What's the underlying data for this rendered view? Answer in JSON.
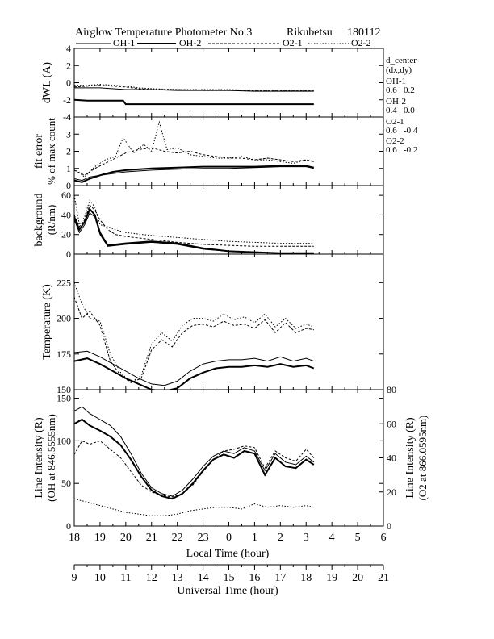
{
  "header": {
    "title": "Airglow Temperature Photometer No.3",
    "site": "Rikubetsu",
    "date": "180112"
  },
  "legend": {
    "placement": "top",
    "items": [
      {
        "name": "OH-1",
        "style": "solid"
      },
      {
        "name": "OH-2",
        "style": "solid-thick"
      },
      {
        "name": "O2-1",
        "style": "dashed"
      },
      {
        "name": "O2-2",
        "style": "dotted"
      }
    ]
  },
  "side_info": {
    "heading1": "d_center",
    "heading2": "(dx,dy)",
    "entries": [
      {
        "name": "OH-1",
        "value": "0.6   0.2"
      },
      {
        "name": "OH-2",
        "value": "0.4   0.0"
      },
      {
        "name": "O2-1",
        "value": "0.6   -0.4"
      },
      {
        "name": "O2-2",
        "value": "0.6   -0.2"
      }
    ]
  },
  "axes": {
    "local_time_label": "Local Time (hour)",
    "local_time_ticks": [
      "18",
      "19",
      "20",
      "21",
      "22",
      "23",
      "0",
      "1",
      "2",
      "3",
      "4",
      "5",
      "6"
    ],
    "universal_time_label": "Universal Time (hour)",
    "universal_time_ticks": [
      "9",
      "10",
      "11",
      "12",
      "13",
      "14",
      "15",
      "16",
      "17",
      "18",
      "19",
      "20",
      "21"
    ]
  },
  "chart_data": [
    {
      "type": "line",
      "title": "",
      "ylabel": "dWL (A)",
      "ylim": [
        -4,
        4
      ],
      "yticks": [
        "4",
        "2",
        "0",
        "-2",
        "-4"
      ],
      "xlim": [
        18,
        30
      ],
      "series": [
        {
          "name": "OH-1",
          "x": [
            18,
            19,
            20,
            21,
            22,
            23,
            24,
            25,
            26,
            27,
            27.3
          ],
          "y": [
            -0.6,
            -0.6,
            -0.8,
            -0.8,
            -0.9,
            -0.9,
            -0.9,
            -1.0,
            -1.0,
            -1.0,
            -1.0
          ]
        },
        {
          "name": "OH-2",
          "x": [
            18,
            18.5,
            19,
            19.5,
            19.9,
            20,
            21,
            22,
            23,
            24,
            25,
            26,
            27,
            27.3
          ],
          "y": [
            -2.0,
            -2.1,
            -2.1,
            -2.1,
            -2.1,
            -2.5,
            -2.5,
            -2.5,
            -2.5,
            -2.5,
            -2.5,
            -2.5,
            -2.5,
            -2.5
          ]
        },
        {
          "name": "O2-1",
          "x": [
            18,
            18.5,
            19,
            19.5,
            20,
            20.5,
            21,
            22,
            23,
            24,
            25,
            26,
            27,
            27.3
          ],
          "y": [
            -0.5,
            -0.4,
            -0.3,
            -0.4,
            -0.5,
            -0.7,
            -0.8,
            -0.8,
            -0.9,
            -0.9,
            -0.9,
            -0.9,
            -0.9,
            -0.9
          ]
        },
        {
          "name": "O2-2",
          "x": [
            18,
            18.5,
            19,
            19.5,
            20,
            20.5,
            21,
            22,
            23,
            24,
            25,
            26,
            27,
            27.3
          ],
          "y": [
            -0.3,
            -0.3,
            -0.2,
            -0.3,
            -0.4,
            -0.6,
            -0.7,
            -0.8,
            -0.8,
            -0.8,
            -0.9,
            -0.9,
            -0.9,
            -0.9
          ]
        }
      ]
    },
    {
      "type": "line",
      "title": "",
      "ylabel": "fit error",
      "ylabel2": "% of max count",
      "ylim": [
        0,
        4
      ],
      "yticks": [
        "4",
        "3",
        "2",
        "1",
        "0"
      ],
      "xlim": [
        18,
        30
      ],
      "series": [
        {
          "name": "OH-1",
          "x": [
            18,
            18.3,
            18.6,
            19,
            19.5,
            20,
            21,
            22,
            23,
            24,
            25,
            26,
            27,
            27.3
          ],
          "y": [
            0.4,
            0.3,
            0.5,
            0.6,
            0.7,
            0.8,
            0.9,
            0.95,
            1.0,
            1.0,
            1.05,
            1.1,
            1.1,
            1.0
          ]
        },
        {
          "name": "OH-2",
          "x": [
            18,
            18.3,
            18.6,
            19,
            19.5,
            20,
            21,
            22,
            23,
            24,
            25,
            26,
            27,
            27.3
          ],
          "y": [
            0.3,
            0.2,
            0.4,
            0.6,
            0.8,
            0.9,
            1.0,
            1.05,
            1.1,
            1.1,
            1.1,
            1.15,
            1.15,
            1.05
          ]
        },
        {
          "name": "O2-1",
          "x": [
            18,
            18.4,
            18.8,
            19.2,
            19.6,
            20,
            20.5,
            21,
            21.5,
            22,
            22.5,
            23,
            23.5,
            24,
            24.5,
            25,
            25.5,
            26,
            26.5,
            27,
            27.3
          ],
          "y": [
            0.9,
            0.6,
            1.0,
            1.3,
            1.6,
            1.9,
            2.1,
            2.2,
            2.0,
            1.9,
            2.0,
            1.8,
            1.7,
            1.6,
            1.6,
            1.5,
            1.6,
            1.5,
            1.4,
            1.5,
            1.4
          ]
        },
        {
          "name": "O2-2",
          "x": [
            18,
            18.4,
            18.8,
            19.2,
            19.6,
            19.9,
            20.3,
            20.7,
            21,
            21.3,
            21.6,
            22,
            22.5,
            23,
            23.5,
            24,
            24.5,
            25,
            25.5,
            26,
            26.5,
            27,
            27.3
          ],
          "y": [
            1.0,
            0.5,
            1.1,
            1.5,
            1.7,
            2.8,
            1.9,
            2.4,
            2.0,
            3.7,
            2.1,
            2.2,
            1.8,
            1.7,
            1.6,
            1.6,
            1.7,
            1.5,
            1.5,
            1.4,
            1.3,
            1.5,
            1.4
          ]
        }
      ]
    },
    {
      "type": "line",
      "title": "",
      "ylabel": "background",
      "ylabel2": "(R/nm)",
      "ylim": [
        0,
        70
      ],
      "yticks": [
        "60",
        "40",
        "20",
        "0"
      ],
      "xlim": [
        18,
        30
      ],
      "series": [
        {
          "name": "OH-1",
          "x": [
            18,
            18.2,
            18.4,
            18.6,
            18.8,
            19,
            19.3,
            20,
            21,
            22,
            23,
            24,
            25,
            26,
            27,
            27.3
          ],
          "y": [
            35,
            22,
            30,
            42,
            38,
            20,
            8,
            10,
            12,
            10,
            5,
            3,
            2,
            1,
            1,
            1
          ]
        },
        {
          "name": "OH-2",
          "x": [
            18,
            18.2,
            18.4,
            18.6,
            18.8,
            19,
            19.3,
            20,
            21,
            22,
            23,
            24,
            25,
            26,
            27,
            27.3
          ],
          "y": [
            38,
            25,
            33,
            46,
            40,
            22,
            9,
            11,
            13,
            11,
            6,
            3,
            2,
            1,
            1,
            1
          ]
        },
        {
          "name": "O2-1",
          "x": [
            18,
            18.2,
            18.4,
            18.6,
            18.8,
            19,
            19.3,
            19.6,
            20,
            21,
            22,
            23,
            24,
            25,
            26,
            27,
            27.3
          ],
          "y": [
            40,
            28,
            35,
            50,
            45,
            35,
            25,
            20,
            18,
            15,
            12,
            10,
            9,
            8,
            8,
            8,
            8
          ]
        },
        {
          "name": "O2-2",
          "x": [
            18,
            18.2,
            18.4,
            18.6,
            18.8,
            19,
            19.3,
            19.6,
            20,
            21,
            22,
            23,
            24,
            25,
            26,
            27,
            27.3
          ],
          "y": [
            60,
            30,
            38,
            55,
            48,
            30,
            28,
            25,
            22,
            19,
            17,
            15,
            13,
            12,
            11,
            11,
            11
          ]
        }
      ]
    },
    {
      "type": "line",
      "title": "",
      "ylabel": "Temperature (K)",
      "ylim": [
        150,
        245
      ],
      "yticks": [
        "225",
        "200",
        "175",
        "150"
      ],
      "xlim": [
        18,
        30
      ],
      "series": [
        {
          "name": "OH-1",
          "x": [
            18,
            18.5,
            19,
            19.5,
            20,
            20.5,
            21,
            21.5,
            22,
            22.5,
            23,
            23.5,
            24,
            24.5,
            25,
            25.5,
            26,
            26.5,
            27,
            27.3
          ],
          "y": [
            176,
            177,
            173,
            168,
            163,
            158,
            154,
            153,
            156,
            163,
            168,
            170,
            171,
            171,
            172,
            170,
            173,
            170,
            172,
            170
          ]
        },
        {
          "name": "OH-2",
          "x": [
            18,
            18.5,
            19,
            19.5,
            20,
            20.5,
            21,
            21.5,
            22,
            22.5,
            23,
            23.5,
            24,
            24.5,
            25,
            25.5,
            26,
            26.5,
            27,
            27.3
          ],
          "y": [
            170,
            172,
            168,
            163,
            158,
            154,
            150,
            149,
            151,
            158,
            162,
            165,
            166,
            166,
            167,
            166,
            168,
            166,
            167,
            165
          ]
        },
        {
          "name": "O2-1",
          "x": [
            18,
            18.3,
            18.6,
            19,
            19.4,
            19.8,
            20.2,
            20.6,
            21,
            21.4,
            21.8,
            22.2,
            22.6,
            23,
            23.4,
            23.8,
            24.2,
            24.6,
            25,
            25.4,
            25.8,
            26.2,
            26.6,
            27,
            27.3
          ],
          "y": [
            215,
            200,
            205,
            195,
            170,
            160,
            155,
            158,
            178,
            185,
            180,
            190,
            195,
            196,
            194,
            198,
            195,
            196,
            193,
            199,
            190,
            197,
            190,
            193,
            192
          ]
        },
        {
          "name": "O2-2",
          "x": [
            18,
            18.3,
            18.6,
            19,
            19.4,
            19.8,
            20.2,
            20.6,
            21,
            21.4,
            21.8,
            22.2,
            22.6,
            23,
            23.4,
            23.8,
            24.2,
            24.6,
            25,
            25.4,
            25.8,
            26.2,
            26.6,
            27,
            27.3
          ],
          "y": [
            225,
            210,
            200,
            198,
            175,
            162,
            155,
            160,
            182,
            190,
            184,
            195,
            200,
            200,
            198,
            203,
            199,
            201,
            197,
            203,
            194,
            200,
            193,
            196,
            194
          ]
        }
      ]
    },
    {
      "type": "line",
      "title": "",
      "ylabel": "Line Intensity (R)",
      "ylabel2": "(OH at 846.5555nm)",
      "ylabel_right": "Line Intensity (R)",
      "ylabel_right2": "(O2 at 866.0595nm)",
      "ylim": [
        0,
        160
      ],
      "ylim_right": [
        0,
        80
      ],
      "yticks": [
        "150",
        "100",
        "50",
        "0"
      ],
      "yticks_right": [
        "80",
        "60",
        "40",
        "20",
        "0"
      ],
      "xlim": [
        18,
        30
      ],
      "series": [
        {
          "name": "OH-1",
          "axis": "left",
          "x": [
            18,
            18.3,
            18.6,
            19,
            19.4,
            19.8,
            20.2,
            20.6,
            21,
            21.4,
            21.8,
            22.2,
            22.6,
            23,
            23.4,
            23.8,
            24.2,
            24.6,
            25,
            25.4,
            25.8,
            26.2,
            26.6,
            27,
            27.3
          ],
          "y": [
            135,
            140,
            132,
            125,
            118,
            105,
            85,
            62,
            45,
            38,
            35,
            42,
            55,
            70,
            82,
            88,
            85,
            92,
            88,
            65,
            85,
            75,
            72,
            82,
            75
          ]
        },
        {
          "name": "OH-2",
          "axis": "left",
          "x": [
            18,
            18.3,
            18.6,
            19,
            19.4,
            19.8,
            20.2,
            20.6,
            21,
            21.4,
            21.8,
            22.2,
            22.6,
            23,
            23.4,
            23.8,
            24.2,
            24.6,
            25,
            25.4,
            25.8,
            26.2,
            26.6,
            27,
            27.3
          ],
          "y": [
            120,
            125,
            118,
            112,
            105,
            95,
            78,
            58,
            42,
            35,
            32,
            38,
            50,
            65,
            78,
            84,
            80,
            88,
            85,
            60,
            80,
            70,
            68,
            78,
            72
          ]
        },
        {
          "name": "O2-1",
          "axis": "right",
          "x": [
            18,
            18.3,
            18.6,
            19,
            19.4,
            19.8,
            20.2,
            20.6,
            21,
            21.4,
            21.8,
            22.2,
            22.6,
            23,
            23.4,
            23.8,
            24.2,
            24.6,
            25,
            25.4,
            25.8,
            26.2,
            26.6,
            27,
            27.3
          ],
          "y": [
            42,
            50,
            48,
            50,
            45,
            40,
            32,
            24,
            20,
            18,
            17,
            19,
            24,
            32,
            39,
            44,
            45,
            47,
            46,
            34,
            44,
            40,
            38,
            45,
            40
          ]
        },
        {
          "name": "O2-2",
          "axis": "right",
          "x": [
            18,
            18.5,
            19,
            19.5,
            20,
            20.5,
            21,
            21.5,
            22,
            22.5,
            23,
            23.5,
            24,
            24.5,
            25,
            25.5,
            26,
            26.5,
            27,
            27.3
          ],
          "y": [
            16,
            14,
            12,
            10,
            8,
            7,
            6,
            6,
            7,
            9,
            10,
            11,
            11,
            10,
            13,
            11,
            12,
            11,
            12,
            11
          ]
        }
      ]
    }
  ]
}
